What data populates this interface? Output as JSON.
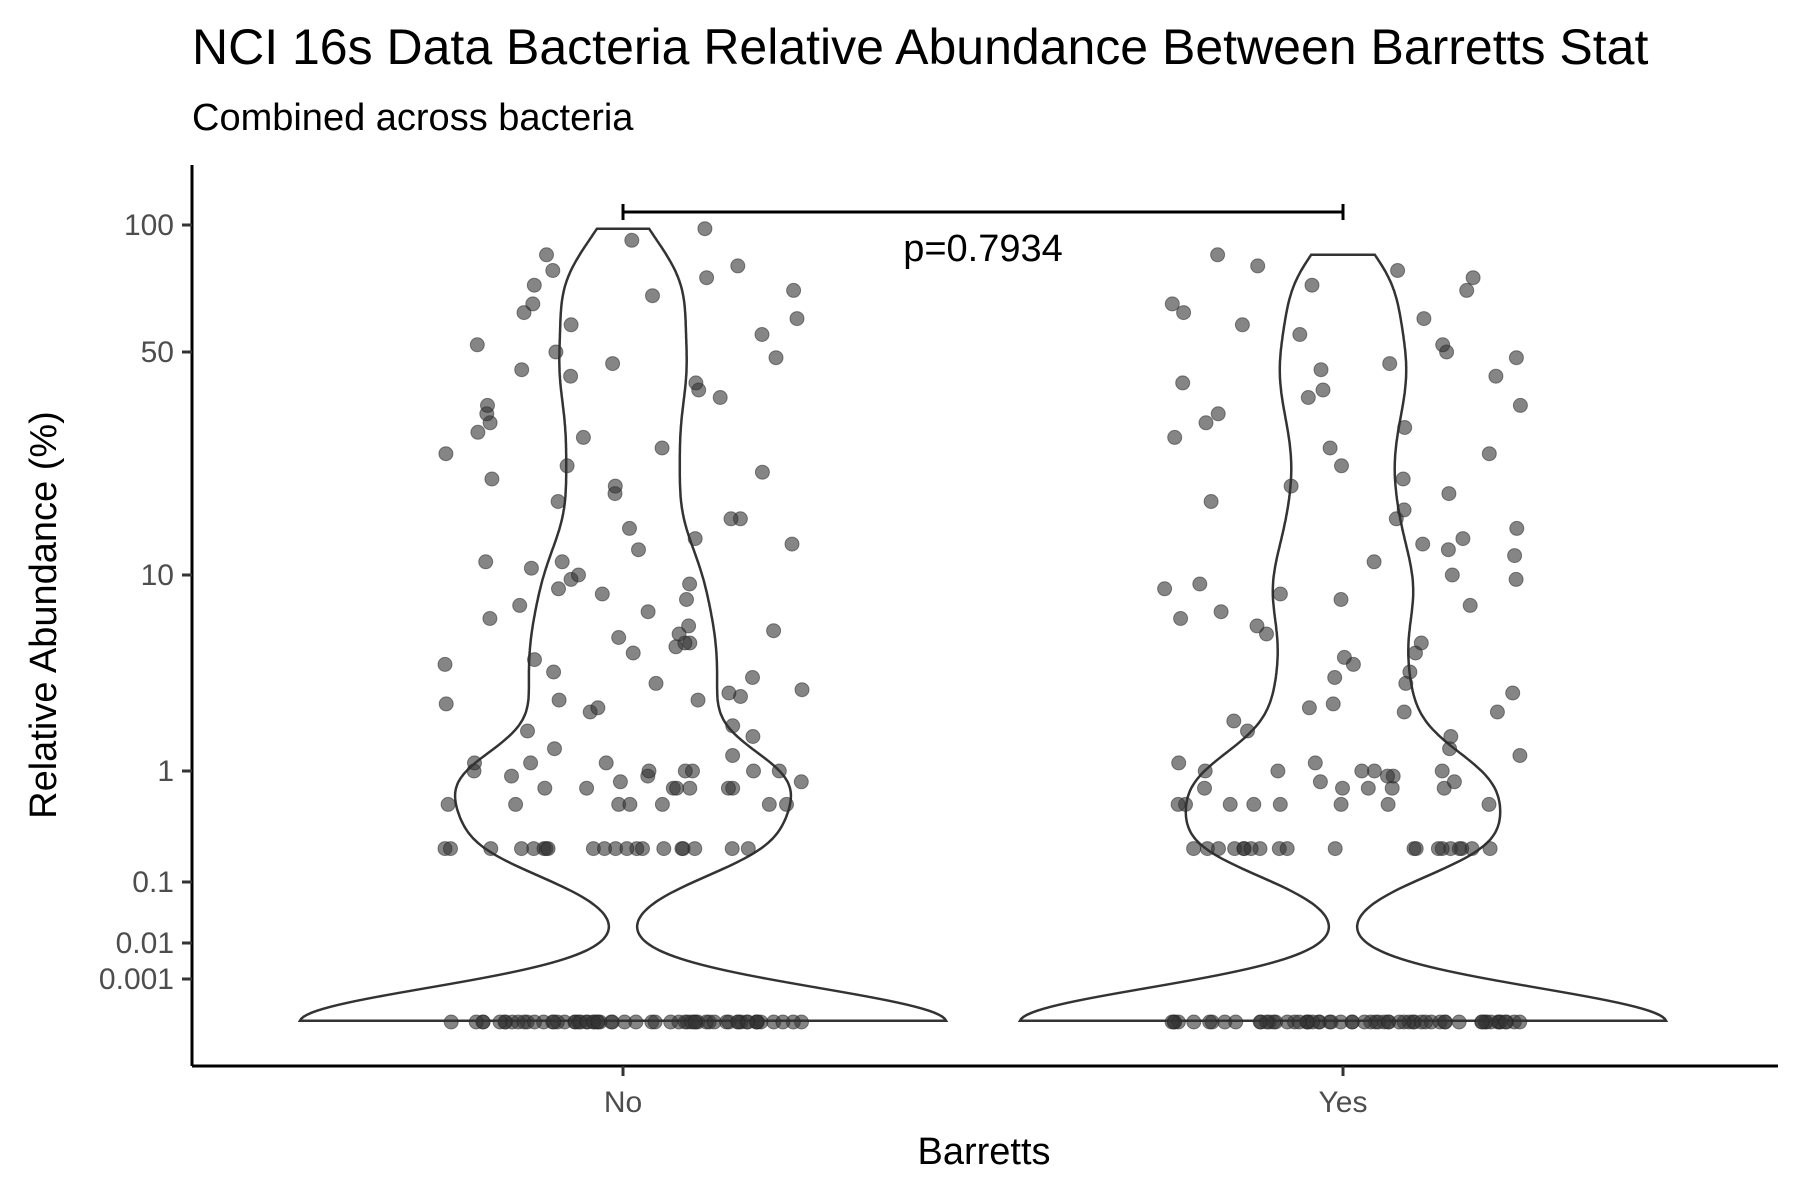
{
  "chart_data": {
    "type": "scatter",
    "title": "NCI 16s Data Bacteria Relative Abundance Between Barretts Stat",
    "subtitle": "Combined across bacteria",
    "xlabel": "Barretts",
    "ylabel": "Relative Abundance (%)",
    "categories": [
      "No",
      "Yes"
    ],
    "y_scale": "pseudo-log",
    "y_ticks": [
      {
        "value": 0.001,
        "label": "0.001"
      },
      {
        "value": 0.01,
        "label": "0.01"
      },
      {
        "value": 0.1,
        "label": "0.1"
      },
      {
        "value": 1,
        "label": "1"
      },
      {
        "value": 10,
        "label": "10"
      },
      {
        "value": 50,
        "label": "50"
      },
      {
        "value": 100,
        "label": "100"
      }
    ],
    "annotation": {
      "text": "p=0.7934",
      "between": [
        "No",
        "Yes"
      ]
    },
    "point_color": "#333333",
    "point_opacity": 0.6,
    "series": [
      {
        "category": "No",
        "values": [
          0,
          0,
          0,
          0,
          0,
          0,
          0,
          0,
          0,
          0,
          0,
          0,
          0,
          0,
          0,
          0,
          0,
          0,
          0,
          0,
          0,
          0,
          0,
          0,
          0,
          0,
          0,
          0,
          0,
          0,
          0,
          0,
          0,
          0,
          0,
          0,
          0,
          0,
          0,
          0,
          0,
          0,
          0,
          0,
          0,
          0,
          0,
          0,
          0,
          0,
          0,
          0,
          0,
          0,
          0,
          0,
          0,
          0,
          0,
          0,
          0.2,
          0.2,
          0.2,
          0.2,
          0.2,
          0.2,
          0.2,
          0.2,
          0.2,
          0.2,
          0.2,
          0.2,
          0.2,
          0.2,
          0.2,
          0.2,
          0.2,
          0.2,
          0.2,
          0.2,
          0.5,
          0.5,
          0.5,
          0.5,
          0.5,
          0.5,
          0.5,
          0.7,
          0.7,
          0.7,
          0.7,
          0.7,
          0.7,
          0.7,
          0.8,
          0.8,
          0.9,
          0.9,
          1,
          1,
          1,
          1,
          1,
          1,
          1.1,
          1.1,
          1.1,
          1.2,
          1.3,
          1.5,
          1.6,
          1.7,
          2,
          2.1,
          2.2,
          2.3,
          2.3,
          2.4,
          2.5,
          2.6,
          2.8,
          3,
          3.2,
          3.5,
          3.7,
          4,
          4.3,
          4.5,
          4.5,
          4.8,
          5,
          5.2,
          5.5,
          6,
          6.5,
          7,
          7.5,
          8,
          8.5,
          9,
          9.5,
          10,
          10.5,
          11,
          11,
          12,
          12.5,
          13,
          14,
          15,
          15,
          17,
          18,
          19,
          20,
          21,
          22,
          24,
          25,
          27,
          28,
          30,
          32,
          34,
          36,
          38,
          40,
          42,
          44,
          46,
          48,
          50,
          52,
          55,
          58,
          60,
          62,
          65,
          68,
          70,
          72,
          75,
          78,
          80,
          85,
          92,
          98
        ]
      },
      {
        "category": "Yes",
        "values": [
          0,
          0,
          0,
          0,
          0,
          0,
          0,
          0,
          0,
          0,
          0,
          0,
          0,
          0,
          0,
          0,
          0,
          0,
          0,
          0,
          0,
          0,
          0,
          0,
          0,
          0,
          0,
          0,
          0,
          0,
          0,
          0,
          0,
          0,
          0,
          0,
          0,
          0,
          0,
          0,
          0,
          0,
          0,
          0,
          0,
          0,
          0,
          0,
          0,
          0,
          0,
          0,
          0,
          0,
          0,
          0,
          0,
          0,
          0,
          0,
          0.2,
          0.2,
          0.2,
          0.2,
          0.2,
          0.2,
          0.2,
          0.2,
          0.2,
          0.2,
          0.2,
          0.2,
          0.2,
          0.2,
          0.2,
          0.2,
          0.2,
          0.2,
          0.2,
          0.2,
          0.5,
          0.5,
          0.5,
          0.5,
          0.5,
          0.5,
          0.5,
          0.5,
          0.7,
          0.7,
          0.7,
          0.7,
          0.7,
          0.8,
          0.8,
          0.9,
          0.9,
          1,
          1,
          1,
          1,
          1,
          1.1,
          1.1,
          1.2,
          1.3,
          1.5,
          1.6,
          1.8,
          2,
          2,
          2.1,
          2.2,
          2.5,
          2.8,
          3,
          3.2,
          3.5,
          3.8,
          4,
          4.5,
          5,
          5.5,
          6,
          6.5,
          7,
          7.5,
          8,
          8.5,
          9,
          9.5,
          10,
          11,
          11.5,
          12,
          12.5,
          13,
          14,
          15,
          16,
          17,
          18,
          19,
          20,
          22,
          24,
          25,
          27,
          29,
          30,
          32,
          34,
          36,
          38,
          40,
          42,
          44,
          46,
          48,
          50,
          52,
          55,
          58,
          60,
          62,
          65,
          70,
          72,
          75,
          78,
          80,
          85
        ]
      }
    ]
  }
}
